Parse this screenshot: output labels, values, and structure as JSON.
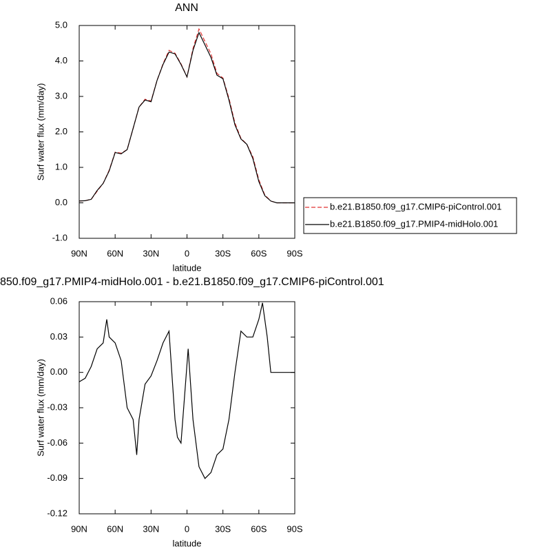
{
  "chart_data": [
    {
      "type": "line",
      "title": "ANN",
      "xlabel": "latitude",
      "ylabel": "Surf water flux (mm/day)",
      "xlim": [
        90,
        -90
      ],
      "ylim": [
        -1,
        5
      ],
      "xticks": [
        {
          "value": 90,
          "label": "90N"
        },
        {
          "value": 60,
          "label": "60N"
        },
        {
          "value": 30,
          "label": "30N"
        },
        0,
        {
          "value": -30,
          "label": "30S"
        },
        {
          "value": -60,
          "label": "60S"
        },
        {
          "value": -90,
          "label": "90S"
        }
      ],
      "yticks": [
        {
          "value": -1,
          "label": "-1.0"
        },
        {
          "value": 0,
          "label": "0.0"
        },
        {
          "value": 1,
          "label": "1.0"
        },
        {
          "value": 2,
          "label": "2.0"
        },
        {
          "value": 3,
          "label": "3.0"
        },
        {
          "value": 4,
          "label": "4.0"
        },
        {
          "value": 5,
          "label": "5.0"
        }
      ],
      "x": [
        90,
        85,
        80,
        75,
        70,
        65,
        60,
        55,
        50,
        45,
        40,
        35,
        30,
        25,
        20,
        15,
        10,
        5,
        0,
        -5,
        -10,
        -15,
        -20,
        -25,
        -30,
        -35,
        -40,
        -45,
        -50,
        -55,
        -60,
        -65,
        -70,
        -75,
        -80,
        -85,
        -90
      ],
      "series": [
        {
          "name": "b.e21.B1850.f09_g17.CMIP6-piControl.001",
          "color": "#e03030",
          "dash": true,
          "values": [
            0.05,
            0.06,
            0.1,
            0.33,
            0.55,
            0.92,
            1.43,
            1.4,
            1.5,
            2.1,
            2.7,
            2.92,
            2.87,
            3.45,
            3.92,
            4.3,
            4.22,
            3.92,
            3.55,
            4.35,
            4.9,
            4.55,
            4.2,
            3.65,
            3.52,
            2.95,
            2.25,
            1.82,
            1.65,
            1.3,
            0.65,
            0.22,
            0.05,
            0.0,
            0.0,
            0.0,
            0.0
          ]
        },
        {
          "name": "b.e21.B1850.f09_g17.PMIP4-midHolo.001",
          "color": "#000000",
          "dash": false,
          "values": [
            0.05,
            0.06,
            0.1,
            0.35,
            0.55,
            0.9,
            1.42,
            1.38,
            1.5,
            2.1,
            2.7,
            2.9,
            2.85,
            3.45,
            3.9,
            4.25,
            4.2,
            3.9,
            3.55,
            4.3,
            4.8,
            4.45,
            4.1,
            3.6,
            3.5,
            2.9,
            2.2,
            1.8,
            1.65,
            1.25,
            0.6,
            0.2,
            0.05,
            0.0,
            0.0,
            0.0,
            0.0
          ]
        }
      ]
    },
    {
      "type": "line",
      "title": "850.f09_g17.PMIP4-midHolo.001 - b.e21.B1850.f09_g17.CMIP6-piControl.001",
      "xlabel": "latitude",
      "ylabel": "Surf water flux (mm/day)",
      "xlim": [
        90,
        -90
      ],
      "ylim": [
        -0.12,
        0.06
      ],
      "xticks": [
        {
          "value": 90,
          "label": "90N"
        },
        {
          "value": 60,
          "label": "60N"
        },
        {
          "value": 30,
          "label": "30N"
        },
        0,
        {
          "value": -30,
          "label": "30S"
        },
        {
          "value": -60,
          "label": "60S"
        },
        {
          "value": -90,
          "label": "90S"
        }
      ],
      "yticks": [
        -0.12,
        -0.09,
        -0.06,
        -0.03,
        {
          "value": 0,
          "label": "0.00"
        },
        0.03,
        0.06
      ],
      "x": [
        90,
        85,
        80,
        75,
        70,
        67,
        65,
        60,
        55,
        50,
        45,
        42,
        40,
        35,
        30,
        25,
        20,
        15,
        12,
        10,
        8,
        5,
        2,
        -1,
        -3,
        -5,
        -10,
        -15,
        -20,
        -25,
        -30,
        -35,
        -40,
        -45,
        -50,
        -55,
        -60,
        -63,
        -67,
        -70,
        -75,
        -80,
        -85,
        -90
      ],
      "series": [
        {
          "name": "",
          "color": "#000000",
          "dash": false,
          "values": [
            -0.008,
            -0.005,
            0.005,
            0.02,
            0.025,
            0.045,
            0.03,
            0.025,
            0.01,
            -0.03,
            -0.04,
            -0.07,
            -0.04,
            -0.01,
            -0.003,
            0.01,
            0.025,
            0.035,
            -0.01,
            -0.04,
            -0.055,
            -0.06,
            -0.02,
            0.02,
            -0.01,
            -0.04,
            -0.08,
            -0.09,
            -0.085,
            -0.07,
            -0.065,
            -0.04,
            0.0,
            0.035,
            0.03,
            0.03,
            0.045,
            0.059,
            0.03,
            0.0,
            0.0,
            0.0,
            0.0,
            0.0
          ]
        }
      ]
    }
  ]
}
